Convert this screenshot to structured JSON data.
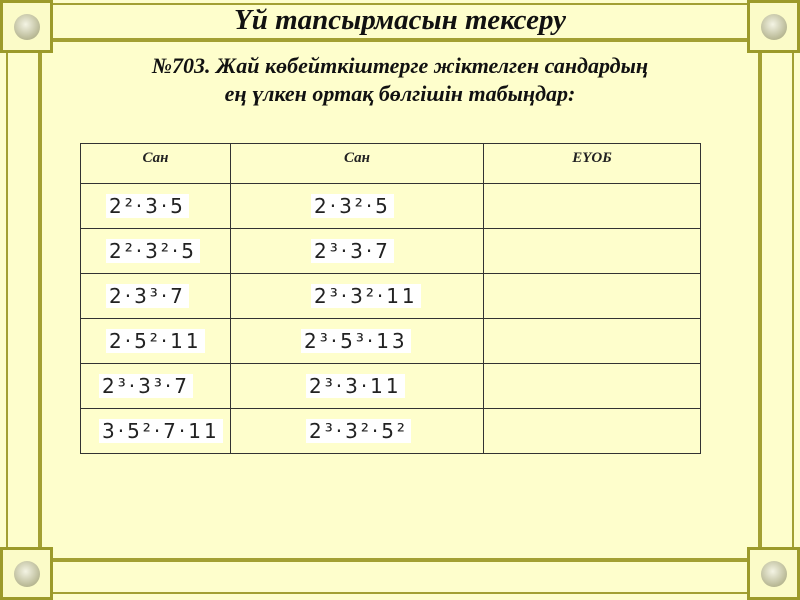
{
  "title": "Үй тапсырмасын тексеру",
  "task": {
    "line1": "№703. Жай көбейткіштерге жіктелген сандардың",
    "line2": "ең үлкен ортақ бөлгішін табыңдар:"
  },
  "table": {
    "headers": [
      "Сан",
      "Сан",
      "ЕҮОБ"
    ],
    "rows": [
      {
        "a": "2²·3·5",
        "b": "2·3²·5",
        "gcd": ""
      },
      {
        "a": "2²·3²·5",
        "b": "2³·3·7",
        "gcd": ""
      },
      {
        "a": "2·3³·7",
        "b": "2³·3²·11",
        "gcd": ""
      },
      {
        "a": "2·5²·11",
        "b": "2³·5³·13",
        "gcd": ""
      },
      {
        "a": "2³·3³·7",
        "b": "2³·3·11",
        "gcd": ""
      },
      {
        "a": "3·5²·7·11",
        "b": "2³·3²·5²",
        "gcd": ""
      }
    ]
  },
  "colors": {
    "background": "#fefecc",
    "frame": "#a3a033"
  }
}
